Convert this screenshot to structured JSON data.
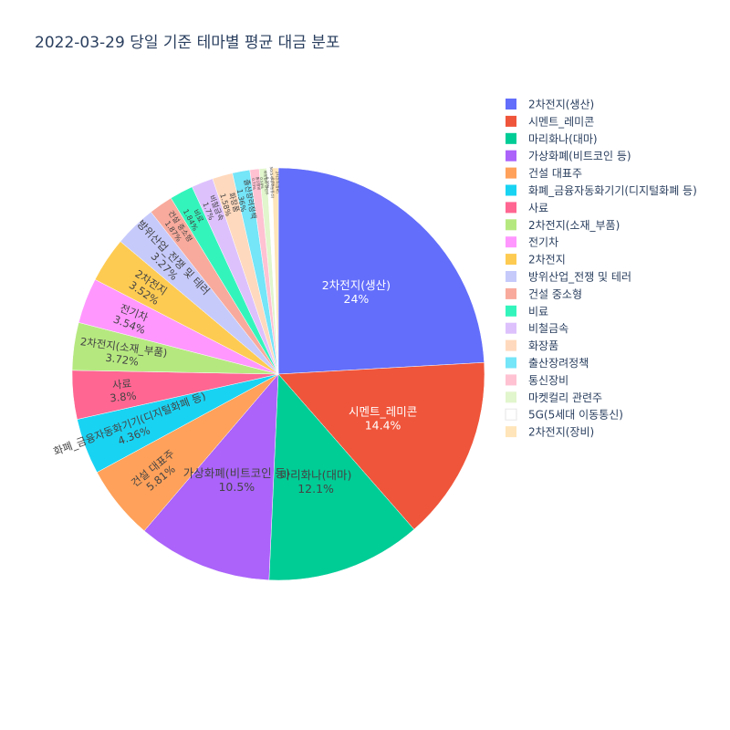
{
  "chart_data": {
    "type": "pie",
    "title": "2022-03-29 당일 기준 테마별 평균 대금 분포",
    "categories": [
      "2차전지(생산)",
      "시멘트_레미콘",
      "마리화나(대마)",
      "가상화폐(비트코인 등)",
      "건설 대표주",
      "화폐_금융자동화기기(디지털화폐 등)",
      "사료",
      "2차전지(소재_부품)",
      "전기차",
      "2차전지",
      "방위산업_전쟁 및 테러",
      "건설 중소형",
      "비료",
      "비철금속",
      "화장품",
      "출산장려정책",
      "통신장비",
      "마켓컬리 관련주",
      "5G(5세대 이동통신)",
      "2차전지(장비)"
    ],
    "values": [
      24,
      14.4,
      12.1,
      10.5,
      5.81,
      4.36,
      3.8,
      3.72,
      3.54,
      3.52,
      3.27,
      1.87,
      1.84,
      1.7,
      1.58,
      1.36,
      0.73,
      0.58,
      0.39,
      0.5
    ],
    "data_labels": [
      "24%",
      "14.4%",
      "12.1%",
      "10.5%",
      "5.81%",
      "4.36%",
      "3.8%",
      "3.72%",
      "3.54%",
      "3.52%",
      "3.27%",
      "1.87%",
      "1.84%",
      "1.7%",
      "1.58%",
      "1.36%",
      "0.73%",
      "0.58%",
      "0.39%",
      "0.5%"
    ],
    "colors": [
      "#636efa",
      "#EF553B",
      "#00cc96",
      "#ab63fa",
      "#FFA15A",
      "#19d3f3",
      "#FF6692",
      "#B6E880",
      "#FF97FF",
      "#FECB52",
      "#c6cafb",
      "#f8aa9c",
      "#33f5bc",
      "#ddc1fd",
      "#ffd9bd",
      "#75e5f8",
      "#ffc2d3",
      "#e1f6cc",
      "#ffffff",
      "#ffe5b9"
    ],
    "legend_position": "right"
  }
}
